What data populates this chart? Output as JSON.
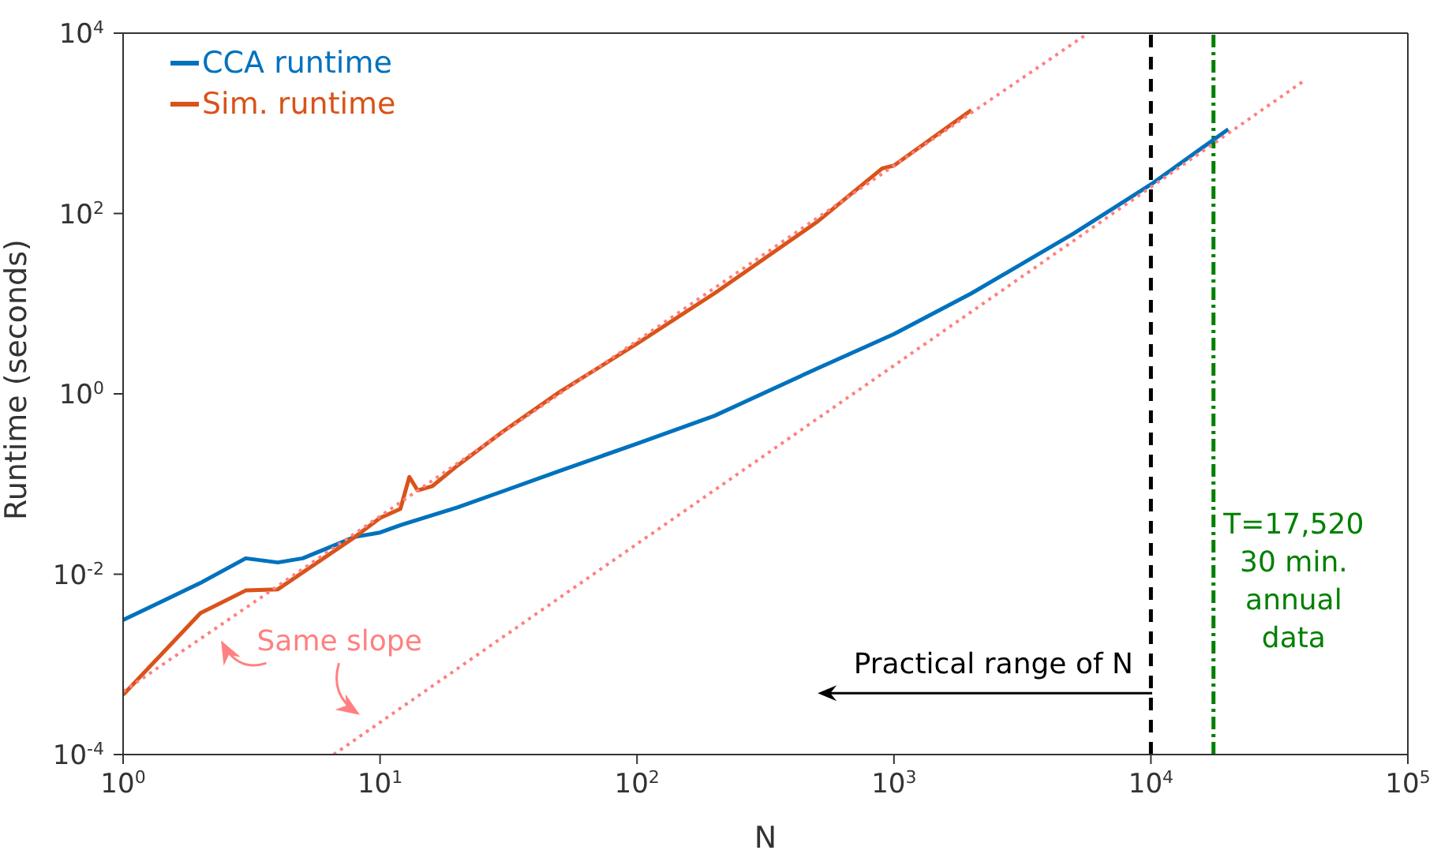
{
  "chart_data": {
    "type": "line",
    "xlabel": "N",
    "ylabel": "Runtime (seconds)",
    "log": "xy",
    "grid": false,
    "legend": "top left",
    "marker": "none",
    "xlim": [
      1,
      100000
    ],
    "ylim": [
      0.0001,
      10000
    ],
    "xticks": [
      {
        "value": 1,
        "label": "10$^{0}$"
      },
      {
        "value": 10,
        "label": "10$^{1}$"
      },
      {
        "value": 100,
        "label": "10$^{2}$"
      },
      {
        "value": 1000,
        "label": "10$^{3}$"
      },
      {
        "value": 10000,
        "label": "10$^{4}$"
      },
      {
        "value": 100000,
        "label": "10$^{5}$"
      }
    ],
    "yticks": [
      {
        "value": 0.0001,
        "label": "10$^{-4}$"
      },
      {
        "value": 0.01,
        "label": "10$^{-2}$"
      },
      {
        "value": 1,
        "label": "10$^{0}$"
      },
      {
        "value": 100,
        "label": "10$^{2}$"
      },
      {
        "value": 10000,
        "label": "10$^{4}$"
      }
    ],
    "series": [
      {
        "name": "CCA runtime",
        "color": "#0072bd",
        "x": [
          1,
          2,
          3,
          4,
          5,
          8,
          10,
          12,
          20,
          30,
          50,
          100,
          200,
          500,
          1000,
          2000,
          5000,
          10000,
          20000
        ],
        "values": [
          0.0031,
          0.008,
          0.015,
          0.0135,
          0.015,
          0.026,
          0.029,
          0.035,
          0.055,
          0.083,
          0.14,
          0.28,
          0.57,
          1.9,
          4.6,
          13,
          60,
          210,
          860
        ]
      },
      {
        "name": "Sim. runtime",
        "color": "#d95319",
        "x": [
          1,
          2,
          3,
          4,
          8,
          10,
          12,
          13,
          14,
          16,
          20,
          30,
          50,
          100,
          200,
          500,
          900,
          1000,
          2000
        ],
        "values": [
          0.00046,
          0.0037,
          0.0066,
          0.0068,
          0.026,
          0.042,
          0.053,
          0.12,
          0.085,
          0.095,
          0.16,
          0.38,
          1.05,
          3.6,
          13,
          80,
          316,
          340,
          1400
        ]
      },
      {
        "type": "line",
        "color": "#ff8080",
        "line_style": "dotted",
        "x": [
          1,
          5700
        ],
        "values": [
          0.0005,
          10000
        ]
      },
      {
        "type": "line",
        "color": "#ff8080",
        "line_style": "dotted",
        "x": [
          6.6,
          39000
        ],
        "values": [
          0.0001,
          2900
        ]
      }
    ],
    "ref_lines": [
      {
        "axis": "x",
        "value": 10000,
        "label": "Practical range of N",
        "color": "#000000",
        "line_style": "dashed"
      },
      {
        "axis": "x",
        "value": 17520,
        "label": "T=17,520\n30 min.\nannual\ndata",
        "color": "#008000",
        "line_style": "dashdot"
      }
    ],
    "annotations": [
      "Same slope"
    ]
  }
}
